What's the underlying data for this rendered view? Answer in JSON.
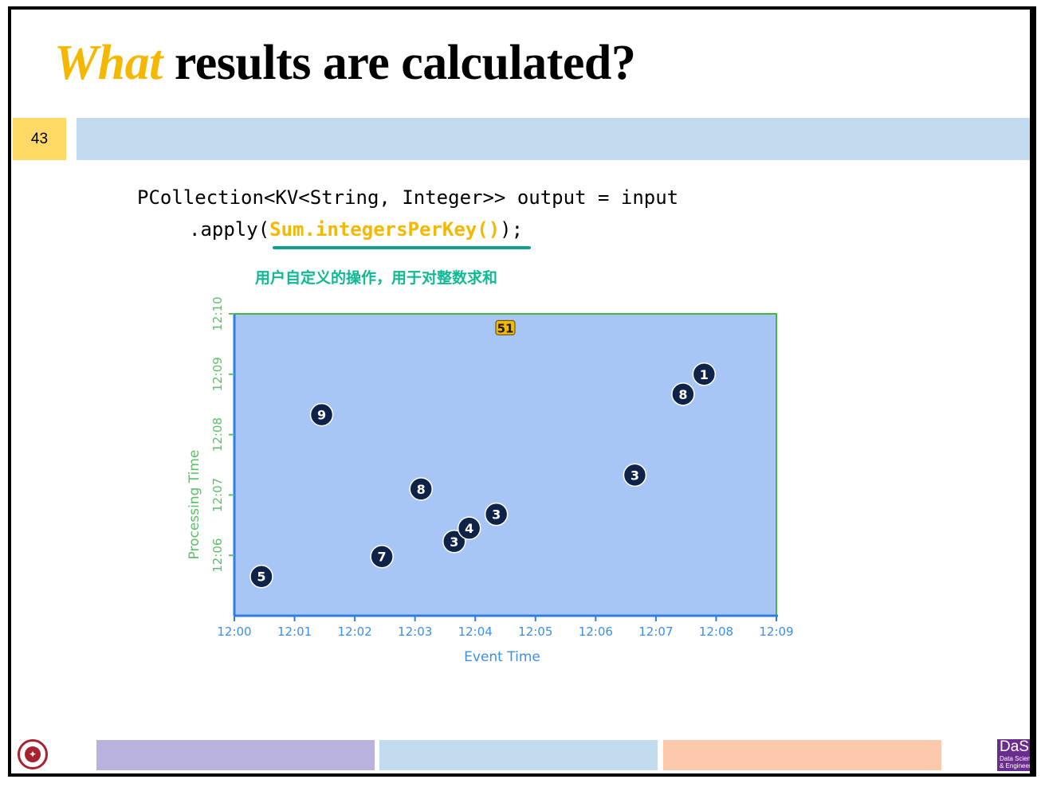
{
  "slide": {
    "title_highlight": "What",
    "title_rest": " results are calculated?",
    "page_number": "43",
    "code_line1": "PCollection<KV<String, Integer>> output = input",
    "code_line2_prefix": ".apply(",
    "code_line2_highlight": "Sum.integersPerKey()",
    "code_line2_suffix": ");",
    "annotation": "用户自定义的操作，用于对整数求和"
  },
  "footer": {
    "bar_colors": [
      "#bab3e0",
      "#c3dbef",
      "#fdc8ab"
    ],
    "logo_left_glyph": "✦",
    "logo_right_text": "DaSE",
    "logo_right_sub1": "Data Science",
    "logo_right_sub2": "& Engineering"
  },
  "chart_data": {
    "type": "scatter",
    "title": "",
    "xlabel": "Event Time",
    "ylabel": "Processing Time",
    "x_ticks": [
      "12:00",
      "12:01",
      "12:02",
      "12:03",
      "12:04",
      "12:05",
      "12:06",
      "12:07",
      "12:08",
      "12:09"
    ],
    "y_ticks": [
      "12:06",
      "12:07",
      "12:08",
      "12:09",
      "12:10"
    ],
    "xlim_minutes": [
      0,
      9
    ],
    "ylim_minutes": [
      5,
      10
    ],
    "points": [
      {
        "event_min": 0.45,
        "proc_min": 5.65,
        "value": "5"
      },
      {
        "event_min": 1.45,
        "proc_min": 8.33,
        "value": "9"
      },
      {
        "event_min": 2.45,
        "proc_min": 5.98,
        "value": "7"
      },
      {
        "event_min": 3.1,
        "proc_min": 7.1,
        "value": "8"
      },
      {
        "event_min": 3.65,
        "proc_min": 6.23,
        "value": "3"
      },
      {
        "event_min": 3.9,
        "proc_min": 6.45,
        "value": "4"
      },
      {
        "event_min": 4.35,
        "proc_min": 6.68,
        "value": "3"
      },
      {
        "event_min": 6.65,
        "proc_min": 7.33,
        "value": "3"
      },
      {
        "event_min": 7.45,
        "proc_min": 8.67,
        "value": "8"
      },
      {
        "event_min": 7.8,
        "proc_min": 9.0,
        "value": "1"
      }
    ],
    "result": {
      "event_min": 4.5,
      "proc_min": 9.77,
      "value": "51"
    },
    "window": {
      "event_start_min": 0,
      "event_end_min": 9,
      "proc_end_min": 10
    },
    "colors": {
      "window_fill": "#a8c6f5",
      "window_border": "#46b83a",
      "axis": "#2f7de0",
      "point_fill": "#0f2348",
      "result_fill": "#f5b800",
      "y_axis_text": "#5cc068",
      "x_axis_text": "#3c8fe6"
    }
  }
}
